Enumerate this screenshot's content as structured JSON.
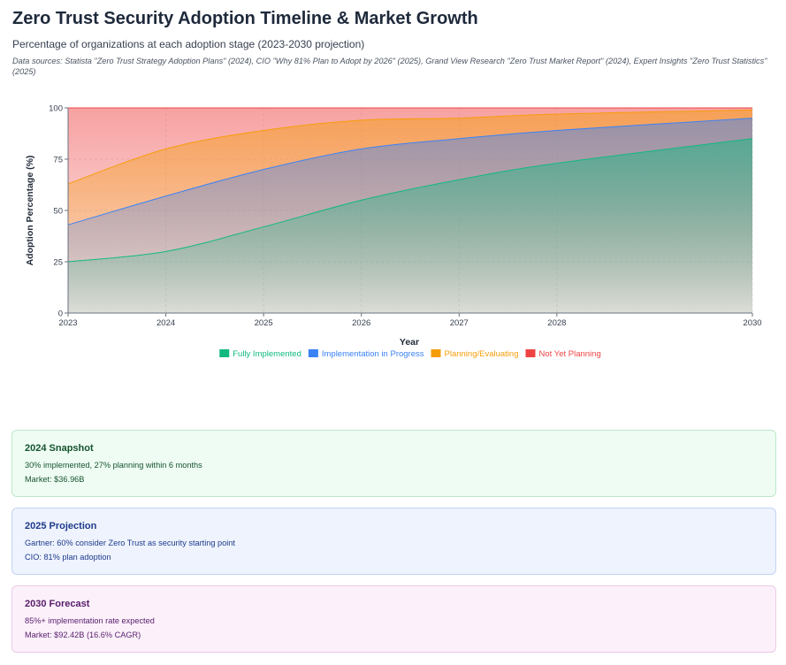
{
  "header": {
    "title": "Zero Trust Security Adoption Timeline & Market Growth",
    "subtitle": "Percentage of organizations at each adoption stage (2023-2030 projection)",
    "sources": "Data sources: Statista \"Zero Trust Strategy Adoption Plans\" (2024), CIO \"Why 81% Plan to Adopt by 2026\" (2025), Grand View Research \"Zero Trust Market Report\" (2024), Expert Insights \"Zero Trust Statistics\" (2025)"
  },
  "chart_data": {
    "type": "area",
    "stacked": true,
    "x": [
      2023,
      2024,
      2025,
      2026,
      2027,
      2028,
      2030
    ],
    "xlabel": "Year",
    "ylabel": "Adoption Percentage (%)",
    "xlim": [
      2023,
      2030
    ],
    "ylim": [
      0,
      100
    ],
    "yticks": [
      0,
      25,
      50,
      75,
      100
    ],
    "xticks": [
      2023,
      2024,
      2025,
      2026,
      2027,
      2028,
      2030
    ],
    "grid": true,
    "legend": "bottom",
    "series": [
      {
        "name": "Fully Implemented",
        "values": [
          25,
          30,
          42,
          55,
          65,
          73,
          85
        ],
        "color": "#10b981"
      },
      {
        "name": "Implementation in Progress",
        "values": [
          18,
          27,
          28,
          25,
          20,
          16,
          10
        ],
        "color": "#3b82f6"
      },
      {
        "name": "Planning/Evaluating",
        "values": [
          20,
          23,
          19,
          14,
          10,
          8,
          4
        ],
        "color": "#f59e0b"
      },
      {
        "name": "Not Yet Planning",
        "values": [
          37,
          20,
          11,
          6,
          5,
          3,
          1
        ],
        "color": "#ef4444"
      }
    ]
  },
  "cards": [
    {
      "title": "2024 Snapshot",
      "line1": "30% implemented, 27% planning within 6 months",
      "line2": "Market: $36.96B"
    },
    {
      "title": "2025 Projection",
      "line1": "Gartner: 60% consider Zero Trust as security starting point",
      "line2": "CIO: 81% plan adoption"
    },
    {
      "title": "2030 Forecast",
      "line1": "85%+ implementation rate expected",
      "line2": "Market: $92.42B (16.6% CAGR)"
    }
  ]
}
